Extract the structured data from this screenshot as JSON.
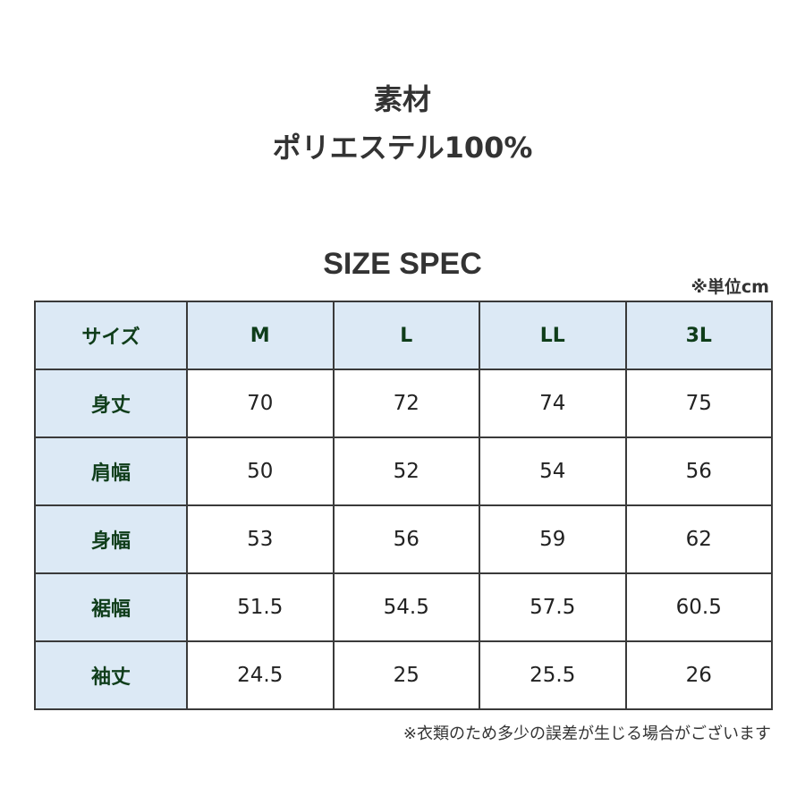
{
  "material": {
    "heading": "素材",
    "value": "ポリエステル100%"
  },
  "size_spec": {
    "title": "SIZE SPEC",
    "unit_note": "※単位cm",
    "header": [
      "サイズ",
      "M",
      "L",
      "LL",
      "3L"
    ],
    "rows": [
      {
        "label": "身丈",
        "values": [
          "70",
          "72",
          "74",
          "75"
        ]
      },
      {
        "label": "肩幅",
        "values": [
          "50",
          "52",
          "54",
          "56"
        ]
      },
      {
        "label": "身幅",
        "values": [
          "53",
          "56",
          "59",
          "62"
        ]
      },
      {
        "label": "裾幅",
        "values": [
          "51.5",
          "54.5",
          "57.5",
          "60.5"
        ]
      },
      {
        "label": "袖丈",
        "values": [
          "24.5",
          "25",
          "25.5",
          "26"
        ]
      }
    ],
    "footnote": "※衣類のため多少の誤差が生じる場合がございます"
  },
  "colors": {
    "header_bg": "#dce9f5",
    "header_text": "#0f3d1a",
    "border": "#3a3a3a"
  }
}
